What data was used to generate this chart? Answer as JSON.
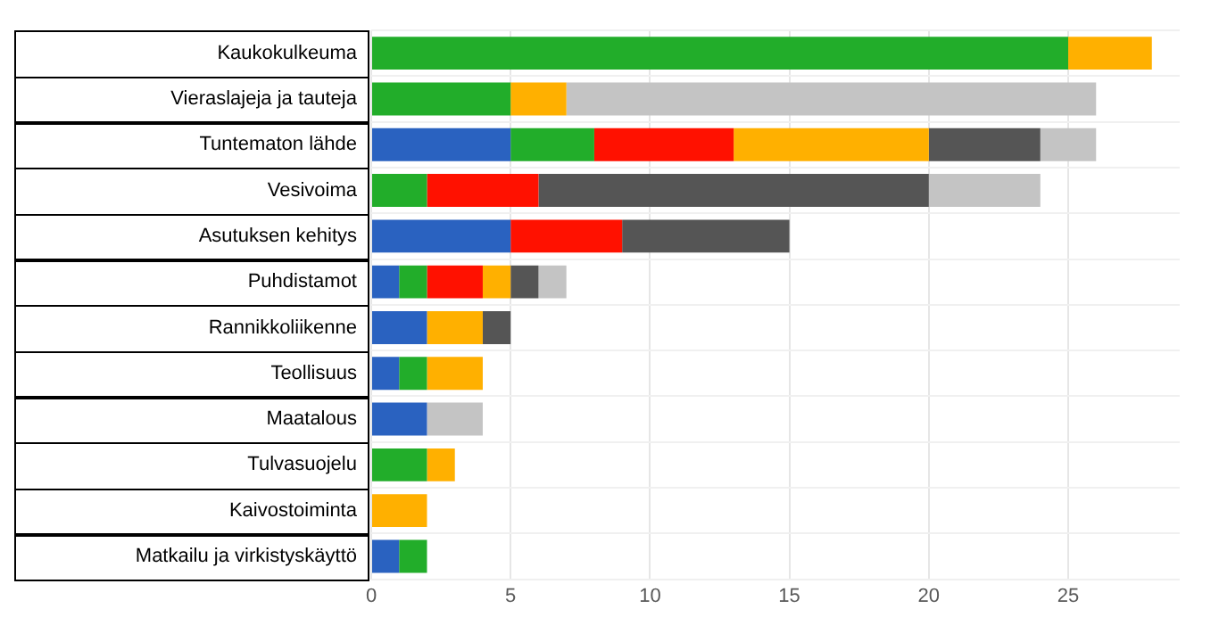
{
  "chart_data": {
    "type": "bar",
    "orientation": "horizontal",
    "stacked": true,
    "grid": true,
    "legend": false,
    "categories": [
      "Kaukokulkeuma",
      "Vieraslajeja ja tauteja",
      "Tuntematon lähde",
      "Vesivoima",
      "Asutuksen kehitys",
      "Puhdistamot",
      "Rannikkoliikenne",
      "Teollisuus",
      "Maatalous",
      "Tulvasuojelu",
      "Kaivostoiminta",
      "Matkailu ja virkistyskäyttö"
    ],
    "xlim": [
      0,
      29
    ],
    "xticks": [
      0,
      5,
      10,
      15,
      20,
      25
    ],
    "series": [
      {
        "color": "#2a62c0",
        "values": [
          null,
          null,
          5,
          null,
          5,
          1,
          2,
          1,
          2,
          null,
          null,
          1
        ]
      },
      {
        "color": "#22ad2a",
        "values": [
          25,
          5,
          3,
          2,
          null,
          1,
          null,
          1,
          null,
          2,
          null,
          1
        ]
      },
      {
        "color": "#ff1100",
        "values": [
          null,
          null,
          5,
          4,
          4,
          2,
          null,
          null,
          null,
          null,
          null,
          null
        ]
      },
      {
        "color": "#ffb000",
        "values": [
          3,
          2,
          7,
          null,
          null,
          1,
          2,
          2,
          null,
          1,
          2,
          null
        ]
      },
      {
        "color": "#555555",
        "values": [
          null,
          null,
          4,
          14,
          6,
          1,
          1,
          null,
          null,
          null,
          null,
          null
        ]
      },
      {
        "color": "#c4c4c4",
        "values": [
          null,
          19,
          2,
          4,
          null,
          1,
          null,
          null,
          2,
          null,
          null,
          null
        ]
      }
    ]
  }
}
